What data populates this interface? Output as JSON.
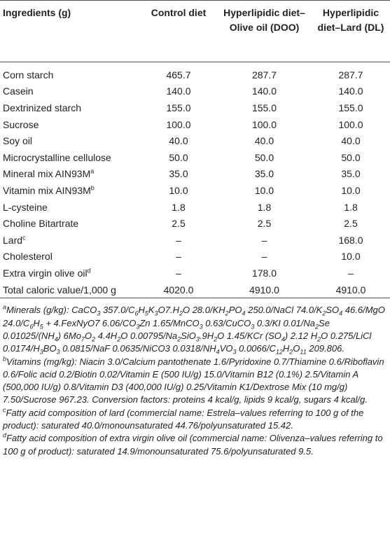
{
  "table": {
    "header": [
      "Ingredients (g)",
      "Control diet",
      "Hyperlipidic diet–Olive oil (DOO)",
      "Hyperlipidic diet–Lard (DL)"
    ],
    "rows": [
      [
        {
          "text": "Corn starch"
        },
        "465.7",
        "287.7",
        "287.7"
      ],
      [
        {
          "text": "Casein"
        },
        "140.0",
        "140.0",
        "140.0"
      ],
      [
        {
          "text": "Dextrinized starch"
        },
        "155.0",
        "155.0",
        "155.0"
      ],
      [
        {
          "text": "Sucrose"
        },
        "100.0",
        "100.0",
        "100.0"
      ],
      [
        {
          "text": "Soy oil"
        },
        "40.0",
        "40.0",
        "40.0"
      ],
      [
        {
          "text": "Microcrystalline cellulose"
        },
        "50.0",
        "50.0",
        "50.0"
      ],
      [
        {
          "text": "Mineral mix AIN93M",
          "note": "a"
        },
        "35.0",
        "35.0",
        "35.0"
      ],
      [
        {
          "text": "Vitamin mix AIN93M",
          "note": "b"
        },
        "10.0",
        "10.0",
        "10.0"
      ],
      [
        {
          "text": "L-cysteine"
        },
        "1.8",
        "1.8",
        "1.8"
      ],
      [
        {
          "text": "Choline Bitartrate"
        },
        "2.5",
        "2.5",
        "2.5"
      ],
      [
        {
          "text": "Lard",
          "note": "c"
        },
        "–",
        "–",
        "168.0"
      ],
      [
        {
          "text": "Cholesterol"
        },
        "–",
        "–",
        "10.0"
      ],
      [
        {
          "text": "Extra virgin olive oil",
          "note": "d"
        },
        "–",
        "178.0",
        "–"
      ],
      [
        {
          "text": "Total caloric value/1,000 g"
        },
        "4020.0",
        "4910.0",
        "4910.0"
      ]
    ]
  },
  "footnotes": [
    [
      {
        "sup": "a"
      },
      "Minerals (g/kg): CaCO",
      {
        "sub": "3"
      },
      " 357.0/C",
      {
        "sub": "6"
      },
      "H",
      {
        "sub": "5"
      },
      "K",
      {
        "sub": "3"
      },
      "O7.H",
      {
        "sub": "2"
      },
      "O 28.0/KH",
      {
        "sub": "2"
      },
      "PO",
      {
        "sub": "4"
      },
      " 250.0/NaCl 74.0/K",
      {
        "sub": "2"
      },
      "SO",
      {
        "sub": "4"
      },
      " 46.6/MgO 24.0/C",
      {
        "sub": "6"
      },
      "H",
      {
        "sub": "5"
      },
      " + 4.FexNyO7 6.06/CO",
      {
        "sub": "3"
      },
      "Zn 1.65/MnCO",
      {
        "sub": "3"
      },
      " 0.63/CuCO",
      {
        "sub": "3"
      },
      " 0.3/KI 0.01/Na",
      {
        "sub": "2"
      },
      "Se 0.01025/(NH",
      {
        "sub": "4"
      },
      ") 6Mo",
      {
        "sub": "7"
      },
      "O",
      {
        "sub": "2"
      },
      " 4.4H",
      {
        "sub": "2"
      },
      "O 0.00795/Na",
      {
        "sub": "2"
      },
      "SiO",
      {
        "sub": "3"
      },
      ".9H",
      {
        "sub": "2"
      },
      "O 1.45/KCr (SO",
      {
        "sub": "4"
      },
      ") 2.12 H",
      {
        "sub": "2"
      },
      "O 0.275/LiCl 0.0174/H",
      {
        "sub": "3"
      },
      "BO",
      {
        "sub": "3"
      },
      " 0.0815/NaF 0.0635/NiCO3 0.0318/NH",
      {
        "sub": "4"
      },
      "VO",
      {
        "sub": "3"
      },
      " 0.0066/C",
      {
        "sub": "12"
      },
      "H",
      {
        "sub": "2"
      },
      "O",
      {
        "sub": "11"
      },
      " 209.806."
    ],
    [
      {
        "sup": "b"
      },
      "Vitamins (mg/kg): Niacin 3.0/Calcium pantothenate 1.6/Pyridoxine 0.7/Thiamine 0.6/Riboflavin 0.6/Folic acid 0.2/Biotin 0.02/Vitamin E (500 IU/g) 15.0/Vitamin B12 (0.1%) 2.5/Vitamin A (500,000 IU/g) 0.8/Vitamin D3 (400,000 IU/g) 0.25/Vitamin K1/Dextrose Mix (10 mg/g) 7.50/Sucrose 967.23. Conversion factors: proteins 4 kcal/g, lipids 9 kcal/g, sugars 4 kcal/g."
    ],
    [
      {
        "sup": "c"
      },
      "Fatty acid composition of lard (commercial name: Estrela–values referring to 100 g of the product): saturated 40.0/monounsaturated 44.76/polyunsaturated 15.42."
    ],
    [
      {
        "sup": "d"
      },
      "Fatty acid composition of extra virgin olive oil (commercial name: Olivenza–values referring to 100 g of product): saturated 14.9/monounsaturated 75.6/polyunsaturated 9.5."
    ]
  ]
}
